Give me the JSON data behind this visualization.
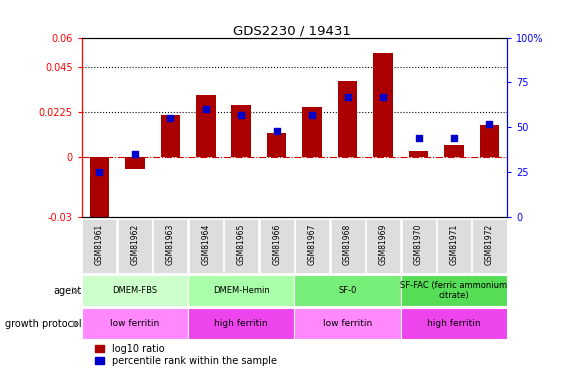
{
  "title": "GDS2230 / 19431",
  "samples": [
    "GSM81961",
    "GSM81962",
    "GSM81963",
    "GSM81964",
    "GSM81965",
    "GSM81966",
    "GSM81967",
    "GSM81968",
    "GSM81969",
    "GSM81970",
    "GSM81971",
    "GSM81972"
  ],
  "log10_ratio": [
    -0.033,
    -0.006,
    0.021,
    0.031,
    0.026,
    0.012,
    0.025,
    0.038,
    0.052,
    0.003,
    0.006,
    0.016
  ],
  "percentile_rank": [
    25,
    35,
    55,
    60,
    57,
    48,
    57,
    67,
    67,
    44,
    44,
    52
  ],
  "bar_color": "#AA0000",
  "dot_color": "#0000CC",
  "ylim_left": [
    -0.03,
    0.06
  ],
  "ylim_right": [
    0,
    100
  ],
  "yticks_left": [
    -0.03,
    0,
    0.0225,
    0.045,
    0.06
  ],
  "yticks_right": [
    0,
    25,
    50,
    75,
    100
  ],
  "hlines": [
    0.0225,
    0.045
  ],
  "agent_groups": [
    {
      "label": "DMEM-FBS",
      "start": 0,
      "end": 3,
      "color": "#CCFFCC"
    },
    {
      "label": "DMEM-Hemin",
      "start": 3,
      "end": 6,
      "color": "#AAFFAA"
    },
    {
      "label": "SF-0",
      "start": 6,
      "end": 9,
      "color": "#77EE77"
    },
    {
      "label": "SF-FAC (ferric ammonium\ncitrate)",
      "start": 9,
      "end": 12,
      "color": "#55DD55"
    }
  ],
  "growth_groups": [
    {
      "label": "low ferritin",
      "start": 0,
      "end": 3,
      "color": "#FF88FF"
    },
    {
      "label": "high ferritin",
      "start": 3,
      "end": 6,
      "color": "#EE44EE"
    },
    {
      "label": "low ferritin",
      "start": 6,
      "end": 9,
      "color": "#FF88FF"
    },
    {
      "label": "high ferritin",
      "start": 9,
      "end": 12,
      "color": "#EE44EE"
    }
  ],
  "agent_label": "agent",
  "growth_label": "growth protocol",
  "legend_bar_label": "log10 ratio",
  "legend_dot_label": "percentile rank within the sample",
  "background_color": "#FFFFFF",
  "plot_bg_color": "#FFFFFF",
  "sample_box_color": "#DDDDDD"
}
